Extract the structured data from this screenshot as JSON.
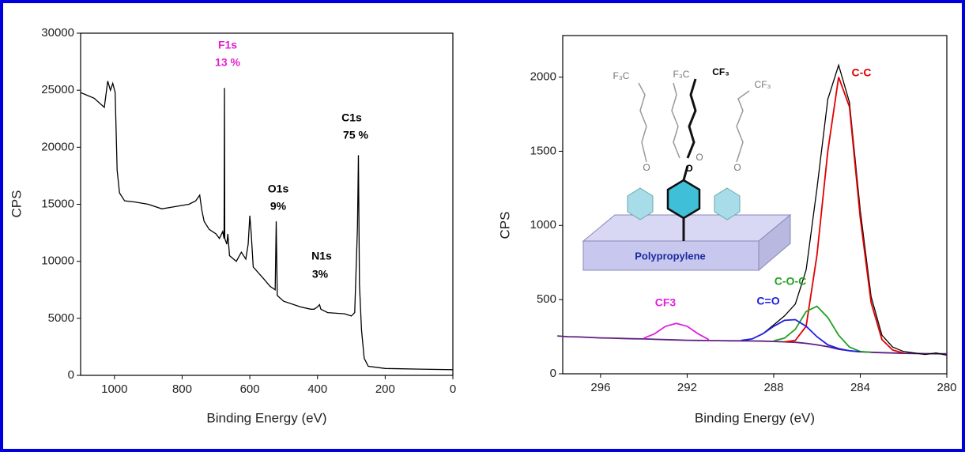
{
  "chart_data": [
    {
      "type": "line",
      "xlabel": "Binding Energy (eV)",
      "ylabel": "CPS",
      "color": "#000000",
      "xlim": [
        1100,
        0
      ],
      "xticks": [
        1000,
        800,
        600,
        400,
        200,
        0
      ],
      "ylim": [
        0,
        30000
      ],
      "yticks": [
        0,
        5000,
        10000,
        15000,
        20000,
        25000,
        30000
      ],
      "x": [
        1100,
        1060,
        1030,
        1020,
        1012,
        1005,
        998,
        992,
        985,
        970,
        940,
        900,
        860,
        820,
        780,
        760,
        748,
        742,
        735,
        720,
        700,
        690,
        680,
        676,
        675,
        674,
        668,
        665,
        660,
        640,
        625,
        612,
        605,
        600,
        596,
        590,
        560,
        540,
        525,
        522,
        519,
        500,
        450,
        420,
        410,
        400,
        394,
        390,
        370,
        320,
        300,
        290,
        282,
        279,
        276,
        270,
        262,
        250,
        200,
        100,
        0
      ],
      "values": [
        24800,
        24300,
        23500,
        25800,
        25000,
        25600,
        24800,
        18000,
        16000,
        15300,
        15200,
        15000,
        14600,
        14800,
        15000,
        15300,
        15800,
        14500,
        13500,
        12800,
        12400,
        12000,
        12600,
        12000,
        25200,
        12000,
        11500,
        12400,
        10500,
        10000,
        10800,
        10200,
        11500,
        14000,
        12500,
        9500,
        8500,
        7800,
        7500,
        13500,
        7000,
        6500,
        6000,
        5800,
        5800,
        6000,
        6200,
        5800,
        5500,
        5400,
        5200,
        5500,
        13000,
        19300,
        8000,
        4000,
        1500,
        800,
        600,
        550,
        500
      ],
      "annotations": [
        {
          "text": "F1s",
          "color": "#e020d0"
        },
        {
          "text": "13 %",
          "color": "#e020d0"
        },
        {
          "text": "O1s",
          "color": "#000000"
        },
        {
          "text": "9%",
          "color": "#000000"
        },
        {
          "text": "N1s",
          "color": "#000000"
        },
        {
          "text": "3%",
          "color": "#000000"
        },
        {
          "text": "C1s",
          "color": "#000000"
        },
        {
          "text": "75 %",
          "color": "#000000"
        }
      ]
    },
    {
      "type": "line",
      "xlabel": "Binding Energy (eV)",
      "ylabel": "CPS",
      "xlim": [
        297.75,
        280
      ],
      "xticks": [
        296,
        292,
        288,
        284,
        280
      ],
      "ylim": [
        0,
        2280
      ],
      "yticks": [
        0,
        500,
        1000,
        1500,
        2000
      ],
      "x": [
        298,
        297.5,
        297,
        296.5,
        296,
        295.5,
        295,
        294.5,
        294,
        293.5,
        293,
        292.5,
        292,
        291.5,
        291,
        290.5,
        290,
        289.5,
        289,
        288.5,
        288,
        287.5,
        287,
        286.5,
        286,
        285.5,
        285,
        284.5,
        284,
        283.5,
        283,
        282.5,
        282,
        281.5,
        281,
        280.5,
        280
      ],
      "series": [
        {
          "color": "#602080",
          "values": [
            255,
            250,
            248,
            245,
            242,
            240,
            238,
            236,
            235,
            232,
            230,
            228,
            226,
            225,
            224,
            223,
            222,
            222,
            221,
            220,
            218,
            215,
            212,
            205,
            195,
            182,
            165,
            155,
            148,
            145,
            142,
            140,
            138,
            137,
            136,
            135,
            135
          ]
        },
        {
          "color": "#000000",
          "values": [
            null,
            null,
            null,
            null,
            null,
            null,
            null,
            null,
            null,
            null,
            null,
            null,
            null,
            null,
            null,
            null,
            null,
            225,
            235,
            270,
            330,
            390,
            470,
            700,
            1250,
            1850,
            2080,
            1830,
            1100,
            520,
            260,
            180,
            150,
            140,
            130,
            140,
            125
          ]
        },
        {
          "name": "C-C",
          "color": "#e00000",
          "values": [
            null,
            null,
            null,
            null,
            null,
            null,
            null,
            null,
            null,
            null,
            null,
            null,
            null,
            null,
            null,
            null,
            null,
            null,
            null,
            null,
            null,
            215,
            225,
            320,
            800,
            1500,
            2000,
            1800,
            1050,
            480,
            230,
            160,
            140,
            null,
            null,
            null,
            null
          ]
        },
        {
          "name": "C-O-C",
          "color": "#22a022",
          "values": [
            null,
            null,
            null,
            null,
            null,
            null,
            null,
            null,
            null,
            null,
            null,
            null,
            null,
            null,
            null,
            null,
            null,
            null,
            null,
            null,
            222,
            240,
            300,
            420,
            455,
            380,
            260,
            180,
            150,
            145,
            null,
            null,
            null,
            null,
            null,
            null,
            null
          ]
        },
        {
          "name": "C=O",
          "color": "#2020e0",
          "values": [
            null,
            null,
            null,
            null,
            null,
            null,
            null,
            null,
            null,
            null,
            null,
            null,
            null,
            null,
            null,
            null,
            null,
            225,
            235,
            270,
            320,
            360,
            365,
            320,
            250,
            195,
            170,
            155,
            148,
            null,
            null,
            null,
            null,
            null,
            null,
            null,
            null
          ]
        },
        {
          "name": "CF3",
          "color": "#e020e0",
          "values": [
            null,
            null,
            null,
            null,
            null,
            null,
            null,
            null,
            240,
            270,
            320,
            340,
            320,
            270,
            230,
            null,
            null,
            null,
            null,
            null,
            null,
            null,
            null,
            null,
            null,
            null,
            null,
            null,
            null,
            null,
            null,
            null,
            null,
            null,
            null,
            null,
            null
          ]
        }
      ],
      "inset": {
        "label": "Polypropylene",
        "groups": [
          "F₃C",
          "F₃C",
          "CF₃",
          "CF₃",
          "O",
          "O",
          "O",
          "O"
        ]
      }
    }
  ]
}
